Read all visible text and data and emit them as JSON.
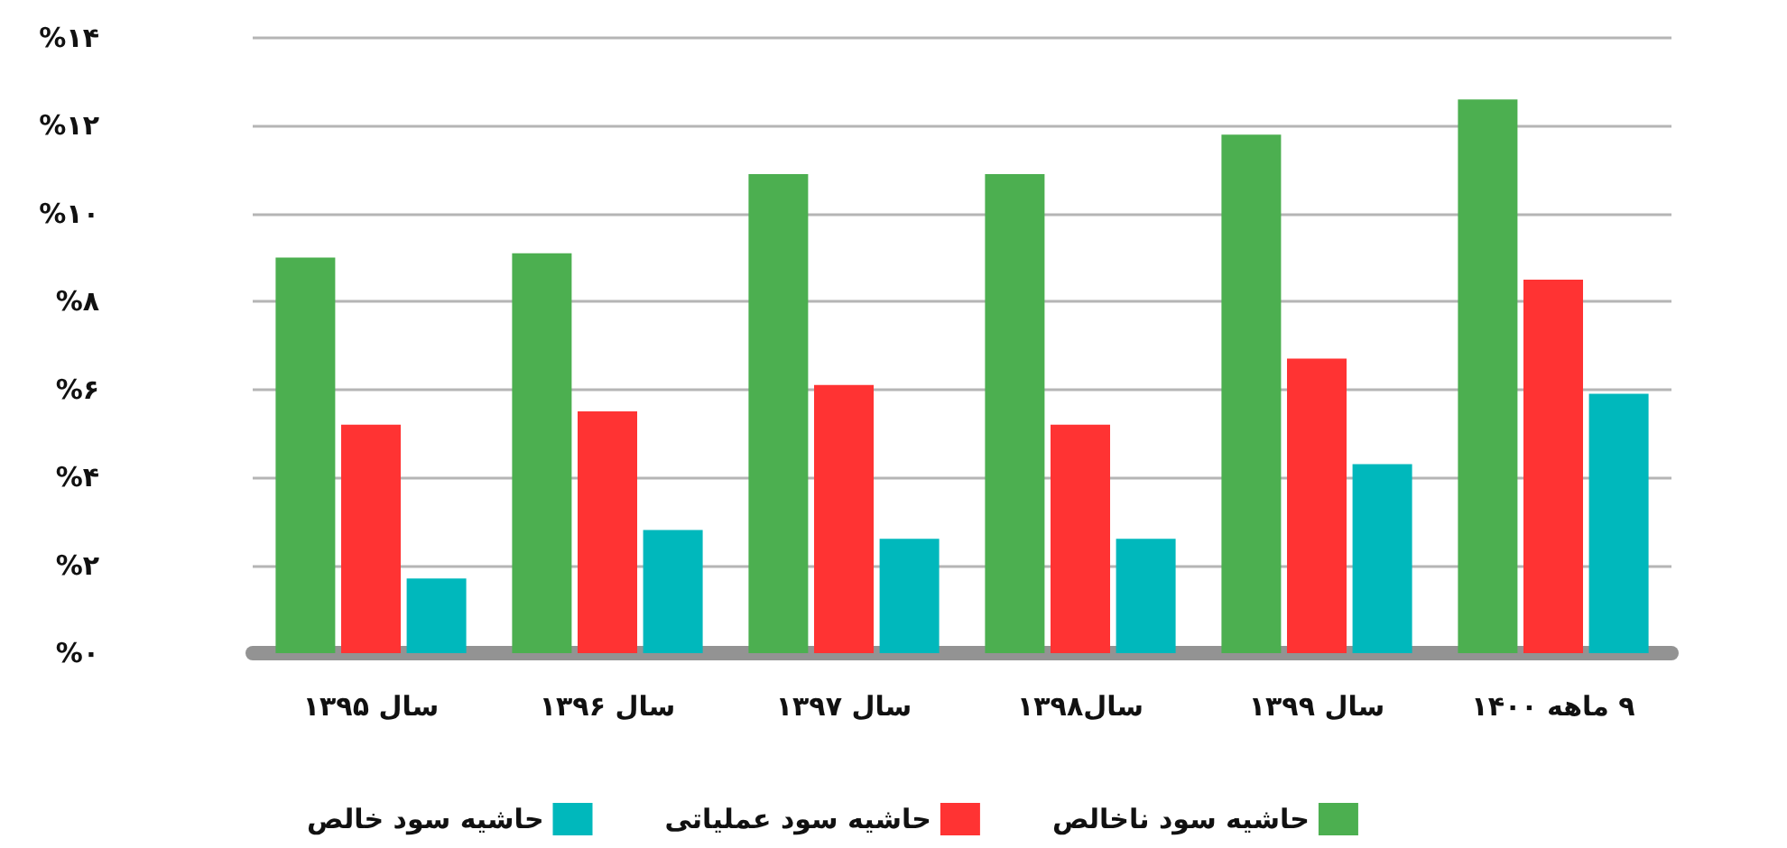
{
  "chart_data": {
    "type": "bar",
    "categories": [
      "سال ۱۳۹۵",
      "سال ۱۳۹۶",
      "سال ۱۳۹۷",
      "سال۱۳۹۸",
      "سال ۱۳۹۹",
      "۹ ماهه ۱۴۰۰"
    ],
    "series": [
      {
        "name": "حاشیه سود ناخالص",
        "color": "#4caf50",
        "values": [
          9.0,
          9.1,
          10.9,
          10.9,
          11.8,
          12.6
        ]
      },
      {
        "name": "حاشیه سود عملیاتی",
        "color": "#ff3333",
        "values": [
          5.2,
          5.5,
          6.1,
          5.2,
          6.7,
          8.5
        ]
      },
      {
        "name": "حاشیه سود خالص",
        "color": "#00b8bc",
        "values": [
          1.7,
          2.8,
          2.6,
          2.6,
          4.3,
          5.9
        ]
      }
    ],
    "ylim": [
      0,
      14
    ],
    "yticks": [
      {
        "value": 0,
        "label": "%۰"
      },
      {
        "value": 2,
        "label": "%۲"
      },
      {
        "value": 4,
        "label": "%۴"
      },
      {
        "value": 6,
        "label": "%۶"
      },
      {
        "value": 8,
        "label": "%۸"
      },
      {
        "value": 10,
        "label": "%۱۰"
      },
      {
        "value": 12,
        "label": "%۱۲"
      },
      {
        "value": 14,
        "label": "%۱۴"
      }
    ],
    "grid": "y",
    "legend": "bottom"
  }
}
